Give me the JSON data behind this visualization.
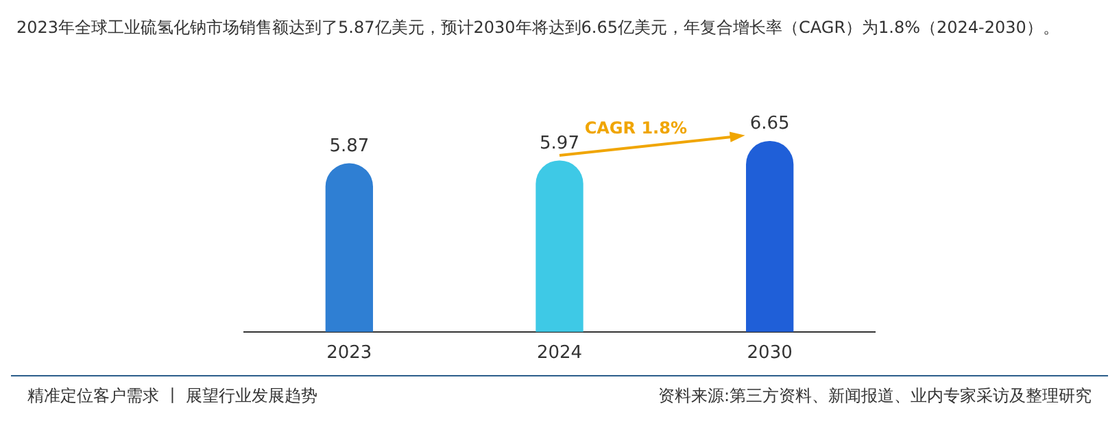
{
  "chart_data": {
    "type": "bar",
    "title": "2023年全球工业硫氢化钠市场销售额达到了5.87亿美元，预计2030年将达到6.65亿美元，年复合增长率（CAGR）为1.8%（2024-2030）。",
    "categories": [
      "2023",
      "2024",
      "2030"
    ],
    "values": [
      5.87,
      5.97,
      6.65
    ],
    "colors": [
      "#2f7fd3",
      "#3ec9e6",
      "#1f5fd8"
    ],
    "data_labels": true,
    "grid": false,
    "legend": false,
    "annotations": [
      "CAGR 1.8%",
      "精准定位客户需求 丨 展望行业发展趋势",
      "资料来源:第三方资料、新闻报道、业内专家采访及整理研究"
    ]
  }
}
